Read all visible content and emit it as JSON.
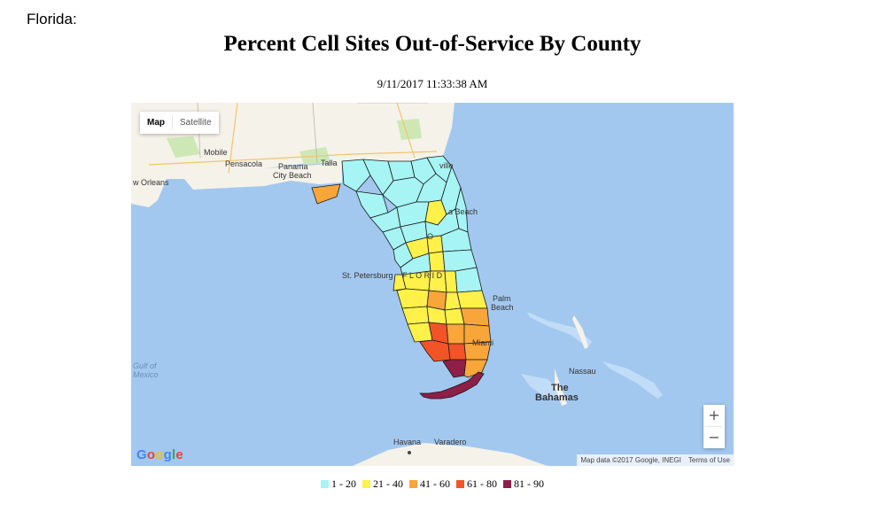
{
  "page": {
    "state_label": "Florida:"
  },
  "title": "Percent Cell Sites Out-of-Service By County",
  "timestamp": "9/11/2017 11:33:38 AM",
  "map": {
    "map_type_buttons": [
      "Map",
      "Satellite"
    ],
    "active_map_type": "Map",
    "zoom_in": "+",
    "zoom_out": "−",
    "logo": "Google",
    "attribution": "Map data ©2017 Google, INEGI",
    "terms": "Terms of Use",
    "place_labels": {
      "mobile": "Mobile",
      "pensacola": "Pensacola",
      "panama": "Panama",
      "city_beach": "City Beach",
      "tallahassee": "Talla",
      "jacksonville": "ville",
      "new_orleans": "w Orleans",
      "beach": "a Beach",
      "st_petersburg": "St. Petersburg",
      "palm": "Palm",
      "beach2": "Beach",
      "miami": "Miami",
      "gulf_of": "Gulf of",
      "mexico": "Mexico",
      "nassau": "Nassau",
      "the": "The",
      "bahamas": "Bahamas",
      "havana": "Havana",
      "varadero": "Varadero",
      "orlando_partial": "O",
      "florida_partial": "F L O R I D"
    },
    "colors": {
      "water": "#a3c8f0",
      "land": "#f5f2e9",
      "park": "#cde8b4",
      "county_border": "#1a1a1a",
      "range_1_20": "#a6f4f4",
      "range_21_40": "#fff04a",
      "range_41_60": "#f8a53a",
      "range_61_80": "#f25427",
      "range_81_90": "#8e1f47"
    }
  },
  "legend": [
    {
      "label": "1 - 20",
      "color": "#a6f4f4"
    },
    {
      "label": "21 - 40",
      "color": "#fff04a"
    },
    {
      "label": "41 - 60",
      "color": "#f8a53a"
    },
    {
      "label": "61 - 80",
      "color": "#f25427"
    },
    {
      "label": "81 - 90",
      "color": "#8e1f47"
    }
  ]
}
